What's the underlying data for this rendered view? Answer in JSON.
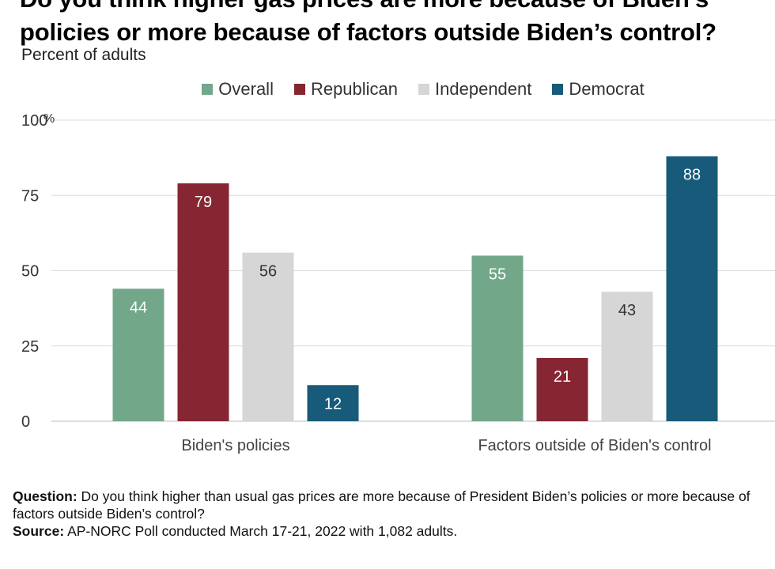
{
  "title_lines": [
    "Do you think higher gas prices are more because of Biden’s",
    "policies or more because of factors outside Biden’s control?"
  ],
  "subtitle": "Percent of adults",
  "notes": {
    "question_label": "Question:",
    "question_text": "Do you think higher than usual gas prices are more because of President Biden’s policies or more because of factors outside Biden’s control?",
    "source_label": "Source:",
    "source_text": "AP-NORC Poll conducted March 17-21, 2022 with 1,082 adults."
  },
  "chart_data": {
    "type": "bar",
    "categories": [
      "Biden's policies",
      "Factors outside of Biden's control"
    ],
    "series": [
      {
        "name": "Overall",
        "color": "#72a78a",
        "values": [
          44,
          55
        ],
        "label_color": "#ffffff"
      },
      {
        "name": "Republican",
        "color": "#862632",
        "values": [
          79,
          21
        ],
        "label_color": "#ffffff"
      },
      {
        "name": "Independent",
        "color": "#d6d6d6",
        "values": [
          56,
          43
        ],
        "label_color": "#333333"
      },
      {
        "name": "Democrat",
        "color": "#175a7a",
        "values": [
          12,
          88
        ],
        "label_color": "#ffffff"
      }
    ],
    "ylim": [
      0,
      100
    ],
    "yticks": [
      0,
      25,
      50,
      75,
      100
    ],
    "ytick_labels": [
      "0",
      "25",
      "50",
      "75",
      "100"
    ],
    "y_unit": "%",
    "grid": true,
    "legend": "top-center"
  }
}
